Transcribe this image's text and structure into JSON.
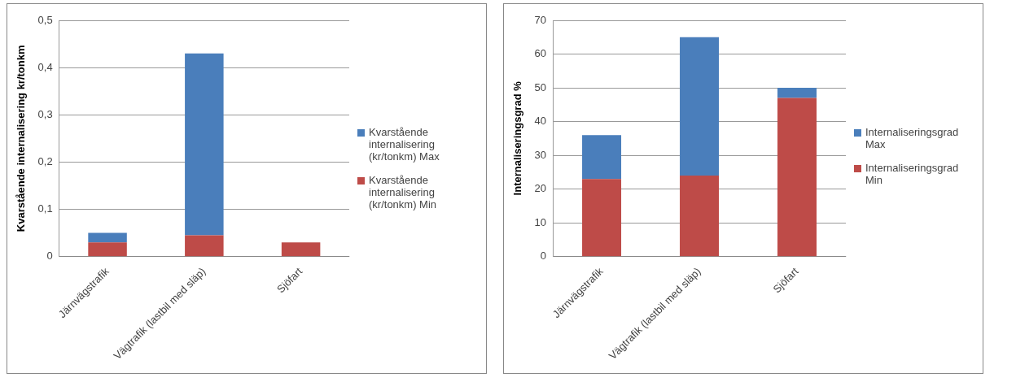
{
  "chart_data": [
    {
      "type": "bar",
      "stacked": true,
      "ylabel": "Kvarstående internalisering kr/tonkm",
      "categories": [
        "Järnvägstrafik",
        "Vägtrafik (lastbil med släp)",
        "Sjöfart"
      ],
      "series": [
        {
          "name": "Kvarstående internalisering (kr/tonkm) Min",
          "color": "#be4b48",
          "values": [
            0.03,
            0.045,
            0.03
          ]
        },
        {
          "name": "Kvarstående internalisering (kr/tonkm) Max",
          "color": "#4a7ebb",
          "values": [
            0.02,
            0.385,
            0
          ]
        }
      ],
      "ylim": [
        0,
        0.5
      ],
      "yticks": [
        0,
        {
          "value": 0.1,
          "label": "0,1"
        },
        {
          "value": 0.2,
          "label": "0,2"
        },
        {
          "value": 0.3,
          "label": "0,3"
        },
        {
          "value": 0.4,
          "label": "0,4"
        },
        {
          "value": 0.5,
          "label": "0,5"
        }
      ],
      "grid": "y",
      "legend": "right"
    },
    {
      "type": "bar",
      "stacked": true,
      "ylabel": "Internaliseringsgrad %",
      "categories": [
        "Järnvägstrafik",
        "Vägtrafik (lastbil med släp)",
        "Sjöfart"
      ],
      "series": [
        {
          "name": "Internaliseringsgrad Min",
          "color": "#be4b48",
          "values": [
            23,
            24,
            47
          ]
        },
        {
          "name": "Internaliseringsgrad Max",
          "color": "#4a7ebb",
          "values": [
            13,
            41,
            3
          ]
        }
      ],
      "ylim": [
        0,
        70
      ],
      "yticks": [
        0,
        10,
        20,
        30,
        40,
        50,
        60,
        70
      ],
      "grid": "y",
      "legend": "right"
    }
  ]
}
